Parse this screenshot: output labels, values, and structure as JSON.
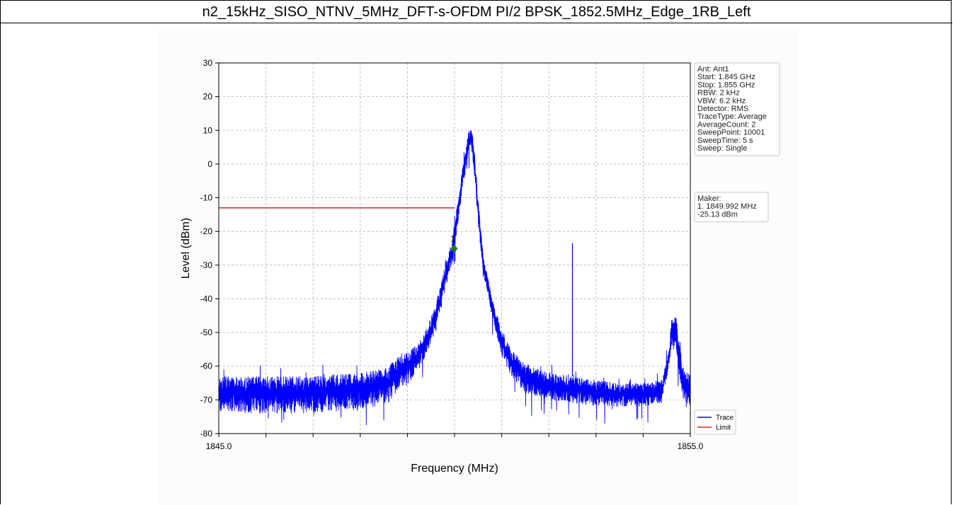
{
  "page": {
    "title": "n2_15kHz_SISO_NTNV_5MHz_DFT-s-OFDM PI/2 BPSK_1852.5MHz_Edge_1RB_Left"
  },
  "info_box": {
    "lines": [
      "Ant: Ant1",
      "Start: 1.845 GHz",
      "Stop: 1.855 GHz",
      "RBW: 2 kHz",
      "VBW: 6.2 kHz",
      "Detector: RMS",
      "TraceType: Average",
      "AverageCount: 2",
      "SweepPoint: 10001",
      "SweepTime: 5 s",
      "Sweep: Single"
    ]
  },
  "marker_box": {
    "lines": [
      "Maker:",
      "1. 1849.992 MHz",
      "    -25.13 dBm"
    ]
  },
  "legend": {
    "entries": [
      {
        "label": "Trace",
        "color": "#0000ff"
      },
      {
        "label": "Limit",
        "color": "#dd2222"
      }
    ]
  },
  "chart_data": {
    "type": "line",
    "xlabel": "Frequency (MHz)",
    "ylabel": "Level (dBm)",
    "xlim": [
      1845.0,
      1855.0
    ],
    "ylim": [
      -80,
      30
    ],
    "x_tick_labels": [
      "1845.0",
      "1855.0"
    ],
    "x_minor_ticks": [
      1846,
      1847,
      1848,
      1849,
      1850,
      1851,
      1852,
      1853,
      1854
    ],
    "y_ticks": [
      30,
      20,
      10,
      0,
      -10,
      -20,
      -30,
      -40,
      -50,
      -60,
      -70,
      -80
    ],
    "grid": true,
    "legend_position": "bottom-right",
    "series": [
      {
        "name": "Trace",
        "color": "#0000ff",
        "envelope": {
          "x": [
            1845.0,
            1846.0,
            1847.0,
            1848.0,
            1848.6,
            1848.8,
            1849.0,
            1849.3,
            1849.6,
            1849.8,
            1849.95,
            1850.1,
            1850.2,
            1850.3,
            1850.35,
            1850.4,
            1850.5,
            1850.6,
            1850.8,
            1851.0,
            1851.2,
            1851.5,
            1852.0,
            1852.5,
            1853.0,
            1853.5,
            1854.0,
            1854.4,
            1854.55,
            1854.6,
            1854.7,
            1854.75,
            1854.85,
            1855.0
          ],
          "max": [
            -63,
            -63,
            -63,
            -62,
            -60,
            -57,
            -56,
            -52,
            -42,
            -30,
            -22,
            -8,
            2,
            10,
            10,
            8,
            -10,
            -26,
            -40,
            -49,
            -55,
            -59,
            -62,
            -63,
            -64,
            -65,
            -65,
            -64,
            -55,
            -46,
            -45,
            -52,
            -60,
            -63
          ],
          "min": [
            -74,
            -74,
            -74,
            -73,
            -71,
            -67,
            -66,
            -60,
            -50,
            -38,
            -30,
            -15,
            -5,
            3,
            3,
            0,
            -18,
            -32,
            -46,
            -57,
            -63,
            -68,
            -70,
            -71,
            -72,
            -72,
            -72,
            -71,
            -60,
            -54,
            -54,
            -62,
            -70,
            -72
          ]
        },
        "spur": {
          "x": 1852.5,
          "y": -23.5
        }
      },
      {
        "name": "Limit",
        "color": "#dd2222",
        "x": [
          1845.0,
          1850.0
        ],
        "y": [
          -13,
          -13
        ]
      }
    ],
    "markers": [
      {
        "label": "1",
        "x": 1849.992,
        "y": -25.13,
        "color": "#1a7a1a"
      }
    ]
  }
}
